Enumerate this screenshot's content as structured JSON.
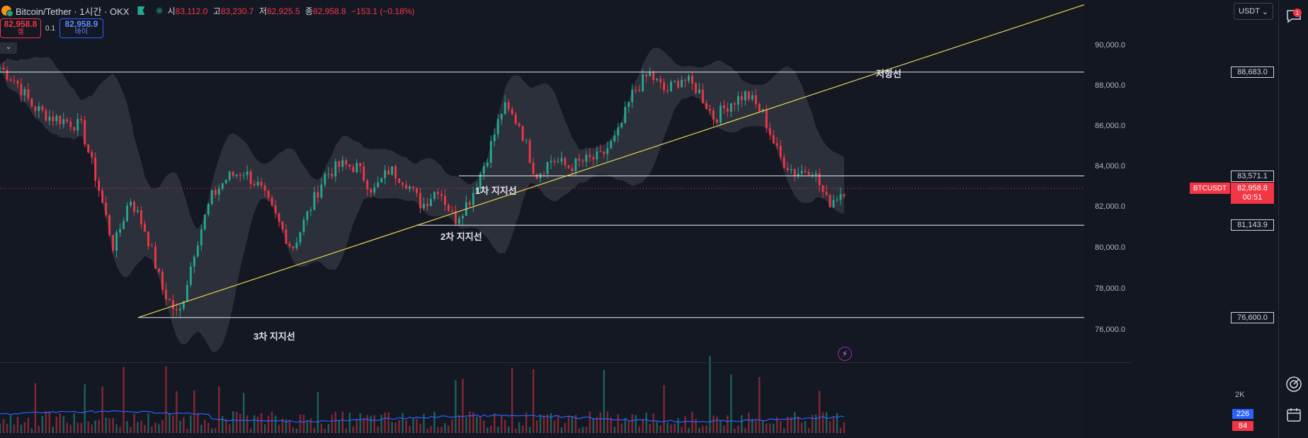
{
  "header": {
    "symbol_title": "Bitcoin/Tether · 1시간 · OKX",
    "ohlc": [
      {
        "key": "시",
        "value": "83,112.0"
      },
      {
        "key": "고",
        "value": "83,230.7"
      },
      {
        "key": "저",
        "value": "82,925.5"
      },
      {
        "key": "종",
        "value": "82,958.8"
      }
    ],
    "change": "−153.1 (−0.18%)"
  },
  "trade": {
    "sell_price": "82,958.8",
    "sell_label": "셀",
    "spread": "0.1",
    "buy_price": "82,958.9",
    "buy_label": "바이"
  },
  "price_scale": {
    "currency": "USDT",
    "ticks": [
      "90,000.0",
      "88,000.0",
      "86,000.0",
      "84,000.0",
      "82,000.0",
      "80,000.0",
      "78,000.0",
      "76,000.0"
    ],
    "levels": [
      "88,683.0",
      "83,571.1",
      "81,143.9",
      "76,600.0"
    ],
    "current_symbol": "BTCUSDT",
    "current_price": "82,958.8",
    "countdown": "00:51"
  },
  "volume_scale": {
    "tick": "2K",
    "badge_buy": "226",
    "badge_sell": "84"
  },
  "annotations": {
    "resistance": "저항선",
    "support1": "1차 지지선",
    "support2": "2차 지지선",
    "support3": "3차 지지선"
  },
  "colors": {
    "up": "#22ab94",
    "down": "#f23645",
    "trendline": "#e8d44d",
    "band": "#4a4d57",
    "background": "#131722"
  },
  "chart_data": {
    "type": "candlestick",
    "series": [
      {
        "name": "BTCUSDT",
        "close_values": [
          88900,
          88200,
          87000,
          86500,
          86300,
          86000,
          83200,
          80000,
          82500,
          80800,
          78000,
          76600,
          80000,
          82500,
          83500,
          83800,
          83000,
          81500,
          80000,
          81800,
          83600,
          84100,
          84000,
          82800,
          83900,
          83300,
          82100,
          83000,
          81400,
          82500,
          84500,
          87000,
          86100,
          83600,
          84400,
          84000,
          84300,
          84500,
          85500,
          87700,
          88600,
          87700,
          88400,
          87800,
          86400,
          87200,
          87600,
          86600,
          84500,
          83700,
          84000,
          82200,
          82900
        ]
      }
    ],
    "levels": [
      {
        "name": "저항선",
        "value": 88683.0
      },
      {
        "name": "1차 지지선",
        "value": 83571.1
      },
      {
        "name": "2차 지지선",
        "value": 81143.9
      },
      {
        "name": "3차 지지선",
        "value": 76600.0
      }
    ],
    "ylim": [
      75000,
      91000
    ],
    "last_price": 82958.8
  }
}
